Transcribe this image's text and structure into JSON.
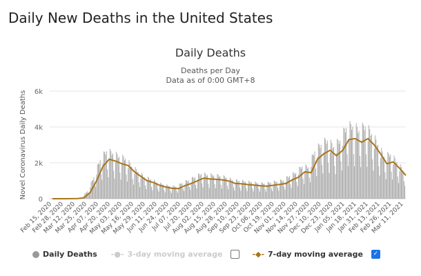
{
  "page_title": "Daily New Deaths in the United States",
  "chart_data": {
    "type": "bar",
    "title": "Daily Deaths",
    "subtitle": [
      "Deaths per Day",
      "Data as of 0:00 GMT+8"
    ],
    "ylabel": "Novel Coronavirus Daily Deaths",
    "ylim": [
      0,
      6000
    ],
    "yticks": [
      "0",
      "2k",
      "4k",
      "6k"
    ],
    "ytick_values": [
      0,
      2000,
      4000,
      6000
    ],
    "grid": true,
    "x_start": "2020-02-15",
    "x_end": "2021-03-16",
    "xtick_labels": [
      "Feb 15, 2020",
      "Feb 28, 2020",
      "Mar 12, 2020",
      "Mar 25, 2020",
      "Apr 07, 2020",
      "Apr 20, 2020",
      "May 03, 2020",
      "May 16, 2020",
      "May 29, 2020",
      "Jun 11, 2020",
      "Jun 24, 2020",
      "Jul 07, 2020",
      "Jul 20, 2020",
      "Aug 02, 2020",
      "Aug 15, 2020",
      "Aug 28, 2020",
      "Sep 10, 2020",
      "Sep 23, 2020",
      "Oct 06, 2020",
      "Oct 19, 2020",
      "Nov 01, 2020",
      "Nov 14, 2020",
      "Nov 27, 2020",
      "Dec 10, 2020",
      "Dec 23, 2020",
      "Jan 05, 2021",
      "Jan 18, 2021",
      "Jan 31, 2021",
      "Feb 13, 2021",
      "Feb 26, 2021",
      "Mar 11, 2021"
    ],
    "series": [
      {
        "name": "Daily Deaths",
        "color": "#a6a6a6",
        "type": "bar"
      },
      {
        "name": "3-day moving average",
        "color": "#cccccc",
        "visible": false
      },
      {
        "name": "7-day moving average",
        "color": "#a8741a",
        "visible": true,
        "weekly_dates_start": "2020-02-15",
        "values": [
          0,
          0,
          1,
          3,
          8,
          50,
          350,
          1000,
          1800,
          2200,
          2100,
          1950,
          1850,
          1500,
          1250,
          1000,
          900,
          750,
          650,
          580,
          560,
          730,
          850,
          1000,
          1150,
          1100,
          1080,
          1050,
          980,
          850,
          830,
          790,
          760,
          720,
          700,
          750,
          800,
          850,
          1050,
          1200,
          1500,
          1450,
          2200,
          2500,
          2700,
          2400,
          2700,
          3300,
          3350,
          3150,
          3350,
          3000,
          2500,
          1950,
          2050,
          1700,
          1300
        ]
      }
    ]
  },
  "legend": {
    "items": [
      "Daily Deaths",
      "3-day moving average",
      "7-day moving average"
    ],
    "checkbox_3day": false,
    "checkbox_7day": true,
    "accent": "#1a73e8"
  }
}
